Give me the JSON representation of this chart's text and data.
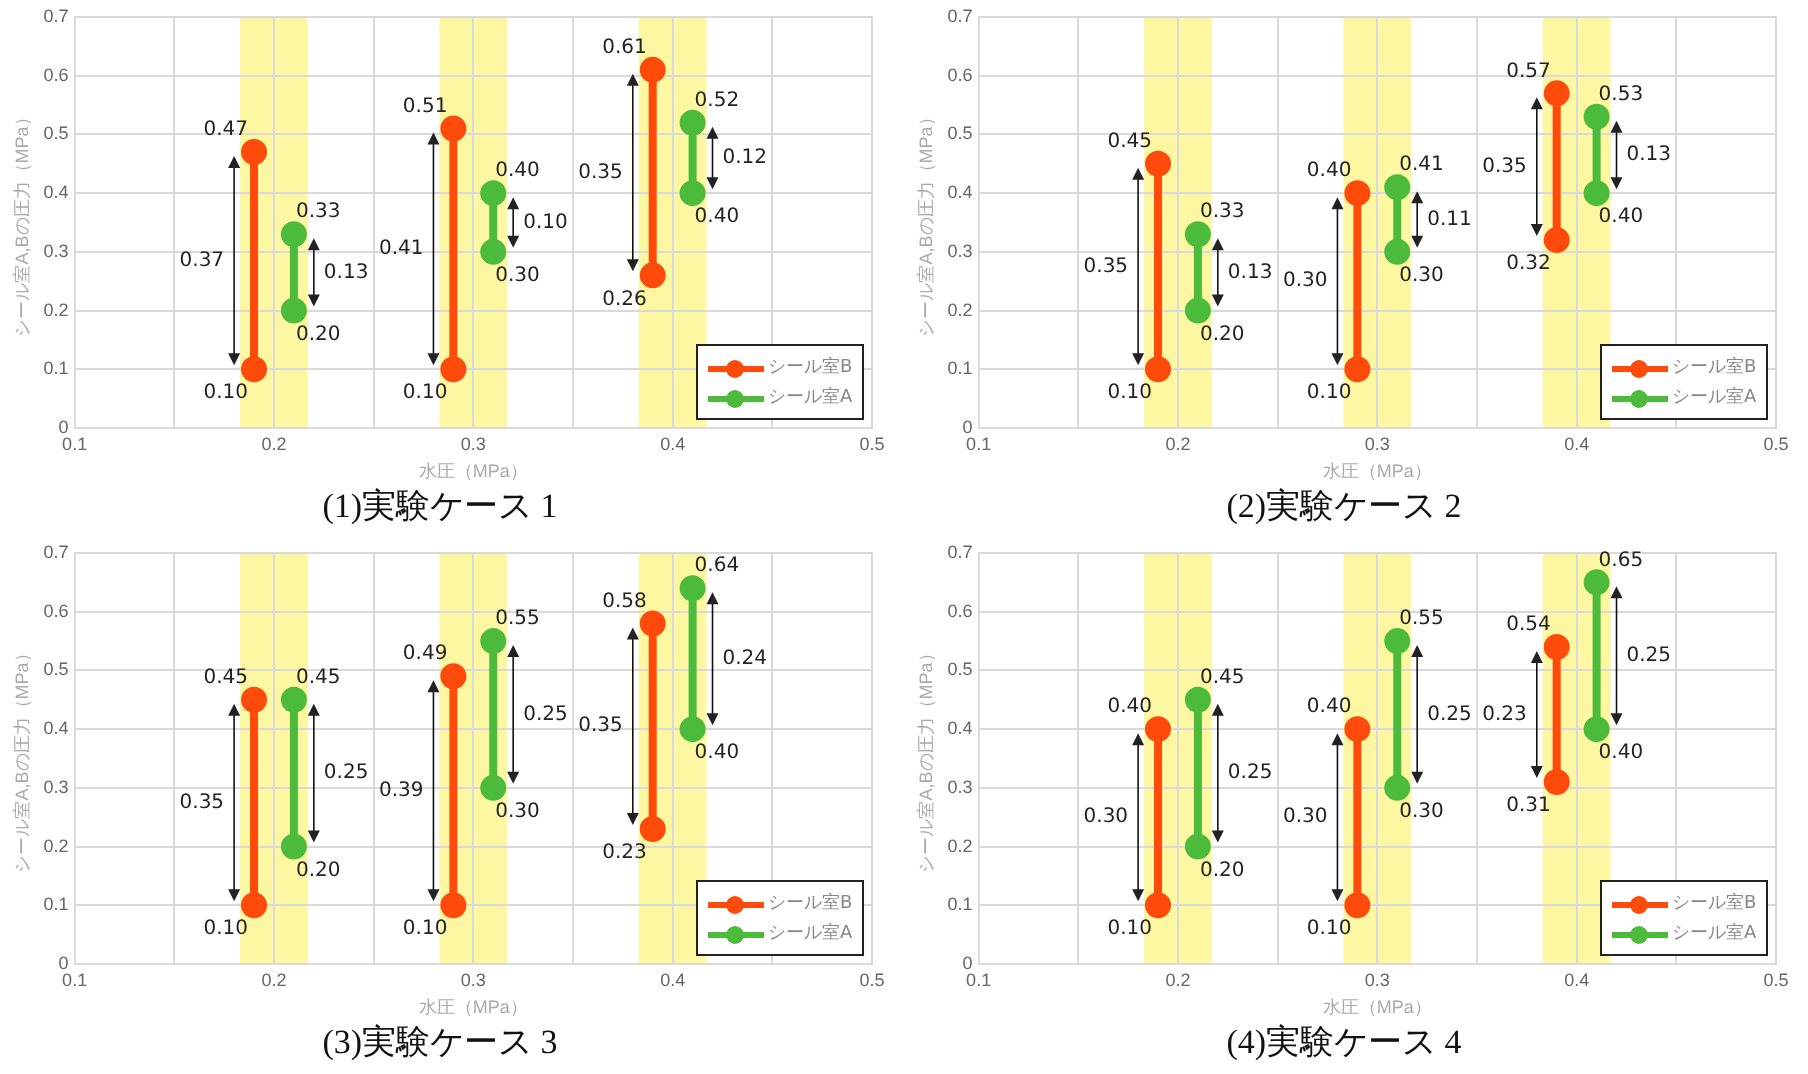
{
  "chart_data": [
    {
      "type": "line",
      "title": "(1)実験ケース 1",
      "xlabel": "水圧（MPa）",
      "ylabel": "シール室A,Bの圧力（MPa）",
      "xlim": [
        0.1,
        0.5
      ],
      "xticks": [
        0.1,
        {
          "value": 0.15,
          "label": null
        },
        0.2,
        {
          "value": 0.25,
          "label": null
        },
        0.3,
        {
          "value": 0.35,
          "label": null
        },
        0.4,
        {
          "value": 0.45,
          "label": null
        },
        0.5
      ],
      "ylim": [
        0,
        0.7
      ],
      "yticks": [
        0,
        0.1,
        0.2,
        0.3,
        0.4,
        0.5,
        0.6,
        0.7
      ],
      "grid": true,
      "legend": "bottom right",
      "marker": "circle",
      "series": [
        {
          "name": "シール室B",
          "color": "#fe4a0a",
          "x": [
            0.19,
            0.19,
            null,
            0.29,
            0.29,
            null,
            0.39,
            0.39
          ],
          "values": [
            0.1,
            0.47,
            null,
            0.1,
            0.51,
            null,
            0.26,
            0.61
          ],
          "value_labels": [
            "0.10",
            "0.47",
            null,
            "0.10",
            "0.51",
            null,
            "0.26",
            "0.61"
          ]
        },
        {
          "name": "シール室A",
          "color": "#4cbb3b",
          "x": [
            0.21,
            0.21,
            null,
            0.31,
            0.31,
            null,
            0.41,
            0.41
          ],
          "values": [
            0.2,
            0.33,
            null,
            0.3,
            0.4,
            null,
            0.4,
            0.52
          ],
          "value_labels": [
            "0.20",
            "0.33",
            null,
            "0.30",
            "0.40",
            null,
            "0.40",
            "0.52"
          ]
        }
      ],
      "bands": [
        {
          "axis": "x",
          "from": 0.183,
          "to": 0.217,
          "color": "#fcf7a0"
        },
        {
          "axis": "x",
          "from": 0.283,
          "to": 0.317,
          "color": "#fcf7a0"
        },
        {
          "axis": "x",
          "from": 0.383,
          "to": 0.417,
          "color": "#fcf7a0"
        }
      ],
      "annotations": [
        {
          "text": "0.37",
          "x": 0.18,
          "y": 0.285
        },
        {
          "text": "0.13",
          "x": 0.22,
          "y": 0.265
        },
        {
          "text": "0.41",
          "x": 0.28,
          "y": 0.305
        },
        {
          "text": "0.10",
          "x": 0.32,
          "y": 0.35
        },
        {
          "text": "0.35",
          "x": 0.38,
          "y": 0.435
        },
        {
          "text": "0.12",
          "x": 0.42,
          "y": 0.46
        }
      ]
    },
    {
      "type": "line",
      "title": "(2)実験ケース 2",
      "xlabel": "水圧（MPa）",
      "ylabel": "シール室A,Bの圧力（MPa）",
      "xlim": [
        0.1,
        0.5
      ],
      "xticks": [
        0.1,
        {
          "value": 0.15,
          "label": null
        },
        0.2,
        {
          "value": 0.25,
          "label": null
        },
        0.3,
        {
          "value": 0.35,
          "label": null
        },
        0.4,
        {
          "value": 0.45,
          "label": null
        },
        0.5
      ],
      "ylim": [
        0,
        0.7
      ],
      "yticks": [
        0,
        0.1,
        0.2,
        0.3,
        0.4,
        0.5,
        0.6,
        0.7
      ],
      "grid": true,
      "legend": "bottom right",
      "marker": "circle",
      "series": [
        {
          "name": "シール室B",
          "color": "#fe4a0a",
          "x": [
            0.19,
            0.19,
            null,
            0.29,
            0.29,
            null,
            0.39,
            0.39
          ],
          "values": [
            0.1,
            0.45,
            null,
            0.1,
            0.4,
            null,
            0.32,
            0.57
          ],
          "value_labels": [
            "0.10",
            "0.45",
            null,
            "0.10",
            "0.40",
            null,
            "0.32",
            "0.57"
          ]
        },
        {
          "name": "シール室A",
          "color": "#4cbb3b",
          "x": [
            0.21,
            0.21,
            null,
            0.31,
            0.31,
            null,
            0.41,
            0.41
          ],
          "values": [
            0.2,
            0.33,
            null,
            0.3,
            0.41,
            null,
            0.4,
            0.53
          ],
          "value_labels": [
            "0.20",
            "0.33",
            null,
            "0.30",
            "0.41",
            null,
            "0.40",
            "0.53"
          ]
        }
      ],
      "bands": [
        {
          "axis": "x",
          "from": 0.183,
          "to": 0.217,
          "color": "#fcf7a0"
        },
        {
          "axis": "x",
          "from": 0.283,
          "to": 0.317,
          "color": "#fcf7a0"
        },
        {
          "axis": "x",
          "from": 0.383,
          "to": 0.417,
          "color": "#fcf7a0"
        }
      ],
      "annotations": [
        {
          "text": "0.35",
          "x": 0.18,
          "y": 0.275
        },
        {
          "text": "0.13",
          "x": 0.22,
          "y": 0.265
        },
        {
          "text": "0.30",
          "x": 0.28,
          "y": 0.25
        },
        {
          "text": "0.11",
          "x": 0.32,
          "y": 0.355
        },
        {
          "text": "0.35",
          "x": 0.38,
          "y": 0.445
        },
        {
          "text": "0.13",
          "x": 0.42,
          "y": 0.465
        }
      ]
    },
    {
      "type": "line",
      "title": "(3)実験ケース 3",
      "xlabel": "水圧（MPa）",
      "ylabel": "シール室A,Bの圧力（MPa）",
      "xlim": [
        0.1,
        0.5
      ],
      "xticks": [
        0.1,
        {
          "value": 0.15,
          "label": null
        },
        0.2,
        {
          "value": 0.25,
          "label": null
        },
        0.3,
        {
          "value": 0.35,
          "label": null
        },
        0.4,
        {
          "value": 0.45,
          "label": null
        },
        0.5
      ],
      "ylim": [
        0,
        0.7
      ],
      "yticks": [
        0,
        0.1,
        0.2,
        0.3,
        0.4,
        0.5,
        0.6,
        0.7
      ],
      "grid": true,
      "legend": "bottom right",
      "marker": "circle",
      "series": [
        {
          "name": "シール室B",
          "color": "#fe4a0a",
          "x": [
            0.19,
            0.19,
            null,
            0.29,
            0.29,
            null,
            0.39,
            0.39
          ],
          "values": [
            0.1,
            0.45,
            null,
            0.1,
            0.49,
            null,
            0.23,
            0.58
          ],
          "value_labels": [
            "0.10",
            "0.45",
            null,
            "0.10",
            "0.49",
            null,
            "0.23",
            "0.58"
          ]
        },
        {
          "name": "シール室A",
          "color": "#4cbb3b",
          "x": [
            0.21,
            0.21,
            null,
            0.31,
            0.31,
            null,
            0.41,
            0.41
          ],
          "values": [
            0.2,
            0.45,
            null,
            0.3,
            0.55,
            null,
            0.4,
            0.64
          ],
          "value_labels": [
            "0.20",
            "0.45",
            null,
            "0.30",
            "0.55",
            null,
            "0.40",
            "0.64"
          ]
        }
      ],
      "bands": [
        {
          "axis": "x",
          "from": 0.183,
          "to": 0.217,
          "color": "#fcf7a0"
        },
        {
          "axis": "x",
          "from": 0.283,
          "to": 0.317,
          "color": "#fcf7a0"
        },
        {
          "axis": "x",
          "from": 0.383,
          "to": 0.417,
          "color": "#fcf7a0"
        }
      ],
      "annotations": [
        {
          "text": "0.35",
          "x": 0.18,
          "y": 0.275
        },
        {
          "text": "0.25",
          "x": 0.22,
          "y": 0.325
        },
        {
          "text": "0.39",
          "x": 0.28,
          "y": 0.295
        },
        {
          "text": "0.25",
          "x": 0.32,
          "y": 0.425
        },
        {
          "text": "0.35",
          "x": 0.38,
          "y": 0.405
        },
        {
          "text": "0.24",
          "x": 0.42,
          "y": 0.52
        }
      ]
    },
    {
      "type": "line",
      "title": "(4)実験ケース 4",
      "xlabel": "水圧（MPa）",
      "ylabel": "シール室A,Bの圧力（MPa）",
      "xlim": [
        0.1,
        0.5
      ],
      "xticks": [
        0.1,
        {
          "value": 0.15,
          "label": null
        },
        0.2,
        {
          "value": 0.25,
          "label": null
        },
        0.3,
        {
          "value": 0.35,
          "label": null
        },
        0.4,
        {
          "value": 0.45,
          "label": null
        },
        0.5
      ],
      "ylim": [
        0,
        0.7
      ],
      "yticks": [
        0,
        0.1,
        0.2,
        0.3,
        0.4,
        0.5,
        0.6,
        0.7
      ],
      "grid": true,
      "legend": "bottom right",
      "marker": "circle",
      "series": [
        {
          "name": "シール室B",
          "color": "#fe4a0a",
          "x": [
            0.19,
            0.19,
            null,
            0.29,
            0.29,
            null,
            0.39,
            0.39
          ],
          "values": [
            0.1,
            0.4,
            null,
            0.1,
            0.4,
            null,
            0.31,
            0.54
          ],
          "value_labels": [
            "0.10",
            "0.40",
            null,
            "0.10",
            "0.40",
            null,
            "0.31",
            "0.54"
          ]
        },
        {
          "name": "シール室A",
          "color": "#4cbb3b",
          "x": [
            0.21,
            0.21,
            null,
            0.31,
            0.31,
            null,
            0.41,
            0.41
          ],
          "values": [
            0.2,
            0.45,
            null,
            0.3,
            0.55,
            null,
            0.4,
            0.65
          ],
          "value_labels": [
            "0.20",
            "0.45",
            null,
            "0.30",
            "0.55",
            null,
            "0.40",
            "0.65"
          ]
        }
      ],
      "bands": [
        {
          "axis": "x",
          "from": 0.183,
          "to": 0.217,
          "color": "#fcf7a0"
        },
        {
          "axis": "x",
          "from": 0.283,
          "to": 0.317,
          "color": "#fcf7a0"
        },
        {
          "axis": "x",
          "from": 0.383,
          "to": 0.417,
          "color": "#fcf7a0"
        }
      ],
      "annotations": [
        {
          "text": "0.30",
          "x": 0.18,
          "y": 0.25
        },
        {
          "text": "0.25",
          "x": 0.22,
          "y": 0.325
        },
        {
          "text": "0.30",
          "x": 0.28,
          "y": 0.25
        },
        {
          "text": "0.25",
          "x": 0.32,
          "y": 0.425
        },
        {
          "text": "0.23",
          "x": 0.38,
          "y": 0.425
        },
        {
          "text": "0.25",
          "x": 0.42,
          "y": 0.525
        }
      ]
    }
  ]
}
